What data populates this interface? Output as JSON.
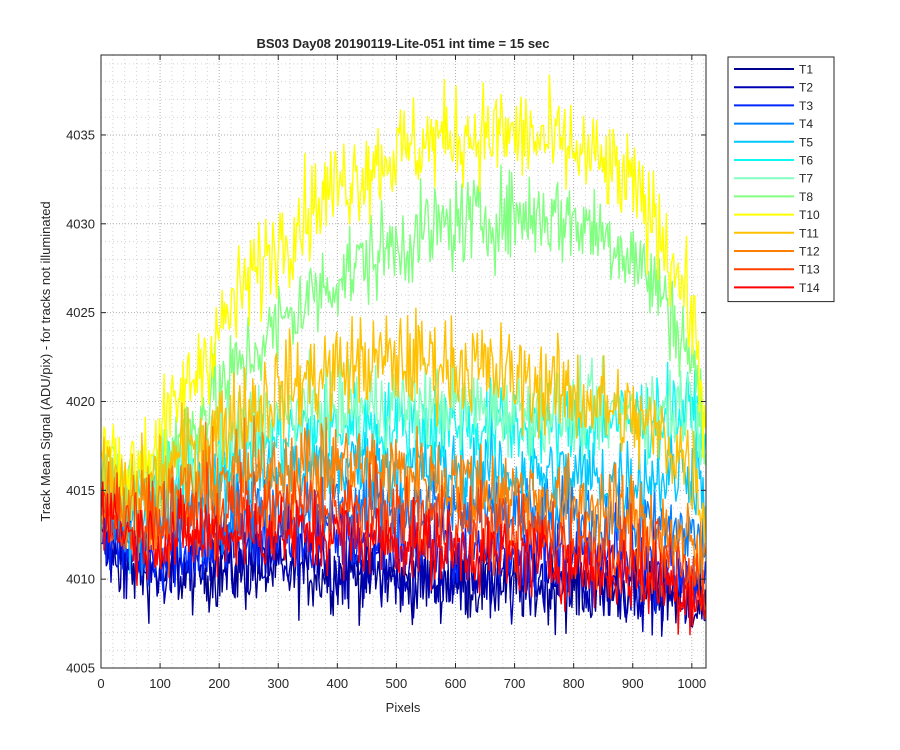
{
  "chart_data": {
    "type": "line",
    "title": "BS03 Day08 20190119-Lite-051 int time = 15 sec",
    "xlabel": "Pixels",
    "ylabel": "Track Mean Signal (ADU/pix) - for tracks not illuminated",
    "xlim": [
      0,
      1024
    ],
    "ylim": [
      4005,
      4039.5
    ],
    "xticks": [
      0,
      100,
      200,
      300,
      400,
      500,
      600,
      700,
      800,
      900,
      1000
    ],
    "yticks": [
      4005,
      4010,
      4015,
      4020,
      4025,
      4030,
      4035
    ],
    "grid": "major and minor, dotted",
    "legend_position": "outside-right-top",
    "curve_note": "each series is sampled at pixel positions; values are approximate readings of the noisy trace centre",
    "x": [
      0,
      50,
      100,
      150,
      200,
      250,
      300,
      350,
      400,
      450,
      500,
      550,
      600,
      650,
      700,
      750,
      800,
      850,
      900,
      950,
      1000,
      1024
    ],
    "series": [
      {
        "name": "T1",
        "color": "#00008f",
        "noise": 1.1,
        "values": [
          4012.0,
          4010.5,
          4010.3,
          4010.3,
          4010.4,
          4010.4,
          4010.5,
          4010.4,
          4010.3,
          4010.2,
          4010.0,
          4009.9,
          4009.8,
          4009.7,
          4009.7,
          4009.6,
          4009.6,
          4009.5,
          4009.4,
          4009.3,
          4009.0,
          4008.5
        ]
      },
      {
        "name": "T2",
        "color": "#0000b4",
        "noise": 1.1,
        "values": [
          4012.3,
          4010.8,
          4010.6,
          4010.7,
          4010.8,
          4010.9,
          4010.9,
          4010.8,
          4010.7,
          4010.6,
          4010.4,
          4010.3,
          4010.2,
          4010.1,
          4010.0,
          4009.9,
          4009.9,
          4009.8,
          4009.7,
          4009.5,
          4009.2,
          4008.7
        ]
      },
      {
        "name": "T3",
        "color": "#0028ff",
        "noise": 1.1,
        "values": [
          4013.0,
          4011.5,
          4011.5,
          4011.7,
          4012.0,
          4012.2,
          4012.3,
          4012.4,
          4012.3,
          4012.2,
          4012.1,
          4011.9,
          4011.8,
          4011.7,
          4011.6,
          4011.5,
          4011.4,
          4011.2,
          4011.0,
          4010.8,
          4010.3,
          4009.5
        ]
      },
      {
        "name": "T4",
        "color": "#0080ff",
        "noise": 1.1,
        "values": [
          4013.8,
          4012.5,
          4012.8,
          4013.2,
          4013.6,
          4013.9,
          4014.1,
          4014.2,
          4014.2,
          4014.1,
          4014.0,
          4013.9,
          4013.8,
          4013.7,
          4013.6,
          4013.5,
          4013.4,
          4013.3,
          4013.1,
          4012.9,
          4012.6,
          4011.5
        ]
      },
      {
        "name": "T5",
        "color": "#00c8ff",
        "noise": 1.2,
        "values": [
          4014.5,
          4013.5,
          4014.0,
          4014.7,
          4015.3,
          4015.8,
          4016.1,
          4016.3,
          4016.4,
          4016.4,
          4016.3,
          4016.2,
          4016.1,
          4016.0,
          4015.9,
          4015.9,
          4015.8,
          4015.7,
          4015.7,
          4015.8,
          4016.2,
          4015.0
        ]
      },
      {
        "name": "T6",
        "color": "#10f8f0",
        "noise": 1.2,
        "values": [
          4015.0,
          4014.3,
          4015.0,
          4016.0,
          4016.9,
          4017.6,
          4018.1,
          4018.4,
          4018.6,
          4018.7,
          4018.7,
          4018.7,
          4018.7,
          4018.7,
          4018.7,
          4018.7,
          4018.8,
          4018.9,
          4019.0,
          4019.2,
          4019.5,
          4017.2
        ]
      },
      {
        "name": "T7",
        "color": "#80ffc0",
        "noise": 1.2,
        "values": [
          4015.3,
          4014.8,
          4015.7,
          4016.9,
          4017.9,
          4018.7,
          4019.2,
          4019.5,
          4019.7,
          4019.8,
          4019.8,
          4019.8,
          4019.7,
          4019.6,
          4019.5,
          4019.4,
          4019.4,
          4019.4,
          4019.5,
          4019.7,
          4019.9,
          4017.8
        ]
      },
      {
        "name": "T8",
        "color": "#80ff80",
        "noise": 1.3,
        "values": [
          4016.0,
          4015.0,
          4016.6,
          4018.6,
          4020.6,
          4022.5,
          4024.2,
          4025.7,
          4027.0,
          4028.0,
          4028.8,
          4029.5,
          4030.0,
          4030.3,
          4030.5,
          4030.5,
          4030.2,
          4029.5,
          4028.2,
          4026.0,
          4022.5,
          4017.5
        ]
      },
      {
        "name": "T10",
        "color": "#ffff00",
        "noise": 1.4,
        "values": [
          4017.5,
          4016.0,
          4018.0,
          4021.0,
          4024.0,
          4026.8,
          4029.0,
          4030.8,
          4032.2,
          4033.2,
          4034.0,
          4034.6,
          4035.0,
          4035.1,
          4035.0,
          4034.7,
          4034.2,
          4033.3,
          4032.0,
          4029.5,
          4025.0,
          4018.5
        ]
      },
      {
        "name": "T11",
        "color": "#ffc000",
        "noise": 1.4,
        "values": [
          4015.8,
          4014.5,
          4015.8,
          4017.3,
          4018.6,
          4019.7,
          4020.6,
          4021.3,
          4021.8,
          4022.2,
          4022.3,
          4022.3,
          4022.1,
          4021.8,
          4021.3,
          4020.9,
          4020.4,
          4019.8,
          4019.0,
          4018.0,
          4016.5,
          4013.5
        ]
      },
      {
        "name": "T12",
        "color": "#ff8000",
        "noise": 1.3,
        "values": [
          4015.2,
          4013.8,
          4014.3,
          4015.0,
          4015.6,
          4016.0,
          4016.3,
          4016.4,
          4016.4,
          4016.3,
          4016.1,
          4015.8,
          4015.5,
          4015.2,
          4014.9,
          4014.6,
          4014.3,
          4013.9,
          4013.4,
          4012.8,
          4011.8,
          4010.5
        ]
      },
      {
        "name": "T13",
        "color": "#ff4000",
        "noise": 1.2,
        "values": [
          4014.6,
          4013.0,
          4013.1,
          4013.4,
          4013.7,
          4013.9,
          4014.0,
          4014.0,
          4013.9,
          4013.8,
          4013.6,
          4013.4,
          4013.2,
          4012.9,
          4012.7,
          4012.4,
          4012.1,
          4011.8,
          4011.4,
          4010.9,
          4010.1,
          4009.3
        ]
      },
      {
        "name": "T14",
        "color": "#ff0000",
        "noise": 1.1,
        "values": [
          4014.2,
          4012.4,
          4012.3,
          4012.4,
          4012.5,
          4012.6,
          4012.6,
          4012.6,
          4012.5,
          4012.3,
          4012.1,
          4011.9,
          4011.7,
          4011.5,
          4011.3,
          4011.1,
          4010.8,
          4010.5,
          4010.2,
          4009.8,
          4009.2,
          4008.5
        ]
      }
    ]
  }
}
